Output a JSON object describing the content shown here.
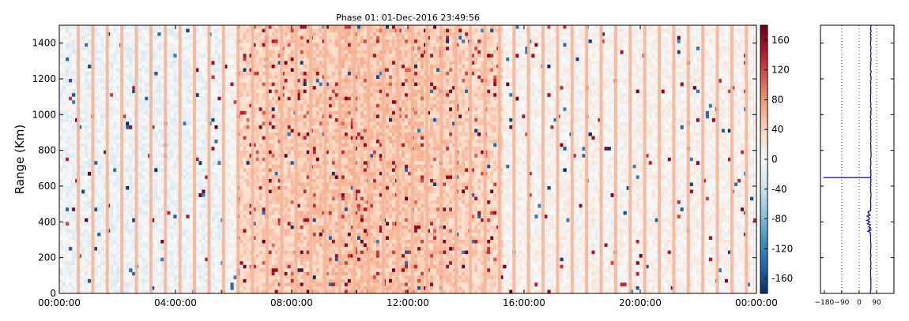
{
  "chart_data": [
    {
      "type": "heatmap",
      "title": "Phase 01: 01-Dec-2016 23:49:56",
      "ylabel": "Range (Km)",
      "xlabel": "",
      "x_tick_labels": [
        "00:00:00",
        "04:00:00",
        "08:00:00",
        "12:00:00",
        "16:00:00",
        "20:00:00",
        "00:00:00"
      ],
      "y_ticks": [
        0,
        200,
        400,
        600,
        800,
        1000,
        1200,
        1400
      ],
      "ylim": [
        0,
        1500
      ],
      "xlim_hours": [
        0,
        24
      ],
      "colorbar": {
        "ticks": [
          -160,
          -120,
          -80,
          -40,
          0,
          40,
          80,
          120,
          160
        ],
        "range": [
          -180,
          180
        ],
        "colormap": [
          "#053061",
          "#2166ac",
          "#4393c3",
          "#92c5de",
          "#d1e5f0",
          "#f7f7f7",
          "#fddbc7",
          "#f4a582",
          "#d6604d",
          "#b2182b",
          "#67001f"
        ]
      },
      "profile_panel": {
        "type": "line",
        "x_ticks": [
          -180,
          -90,
          0,
          90
        ],
        "xlim": [
          -200,
          180
        ],
        "ylim": [
          0,
          1500
        ],
        "grid_lines_x": [
          -90,
          0,
          90
        ],
        "line_color": "#0000cc",
        "baseline_value": 60,
        "spike_range_km": 648,
        "spike_value": -185
      }
    }
  ]
}
